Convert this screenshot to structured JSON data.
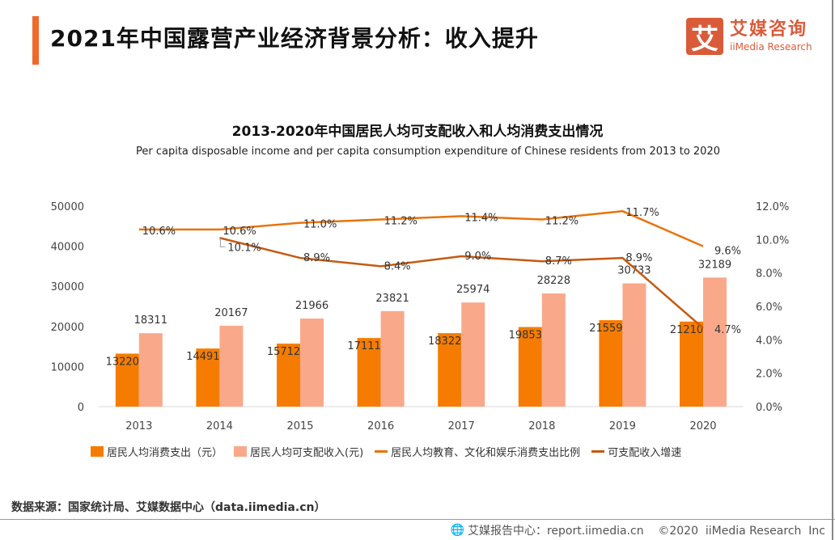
{
  "header": {
    "title": "2021年中国露营产业经济背景分析：收入提升"
  },
  "logo": {
    "mark": "艾",
    "cn": "艾媒咨询",
    "en": "iiMedia Research"
  },
  "chart_data": {
    "type": "bar",
    "title": "2013-2020年中国居民人均可支配收入和人均消费支出情况",
    "subtitle": "Per capita disposable income and per capita consumption expenditure of Chinese residents from 2013 to 2020",
    "categories": [
      "2013",
      "2014",
      "2015",
      "2016",
      "2017",
      "2018",
      "2019",
      "2020"
    ],
    "ylim": [
      0,
      50000
    ],
    "yticks": [
      "0",
      "10000",
      "20000",
      "30000",
      "40000",
      "50000"
    ],
    "y2lim": [
      0,
      12
    ],
    "y2ticks": [
      "0.0%",
      "2.0%",
      "4.0%",
      "6.0%",
      "8.0%",
      "10.0%",
      "12.0%"
    ],
    "grid": false,
    "legend_position": "bottom",
    "series": [
      {
        "name": "居民人均消费支出（元）",
        "kind": "bar",
        "axis": "left",
        "color": "#f57c00",
        "values": [
          13220,
          14491,
          15712,
          17111,
          18322,
          19853,
          21559,
          21210
        ]
      },
      {
        "name": "居民人均可支配收入(元)",
        "kind": "bar",
        "axis": "left",
        "color": "#f9a98a",
        "values": [
          18311,
          20167,
          21966,
          23821,
          25974,
          28228,
          30733,
          32189
        ]
      },
      {
        "name": "居民人均教育、文化和娱乐消费支出比例",
        "kind": "line",
        "axis": "right",
        "color": "#e8730c",
        "values": [
          10.6,
          10.6,
          11.0,
          11.2,
          11.4,
          11.2,
          11.7,
          9.6
        ]
      },
      {
        "name": "可支配收入增速",
        "kind": "line",
        "axis": "right",
        "color": "#c55a11",
        "values": [
          null,
          10.1,
          8.9,
          8.4,
          9.0,
          8.7,
          8.9,
          4.7
        ]
      }
    ]
  },
  "source": "数据来源：国家统计局、艾媒数据中心（data.iimedia.cn）",
  "footer": {
    "text": "艾媒报告中心：report.iimedia.cn    ©2020  iiMedia Research  Inc",
    "icon": "globe-icon"
  }
}
